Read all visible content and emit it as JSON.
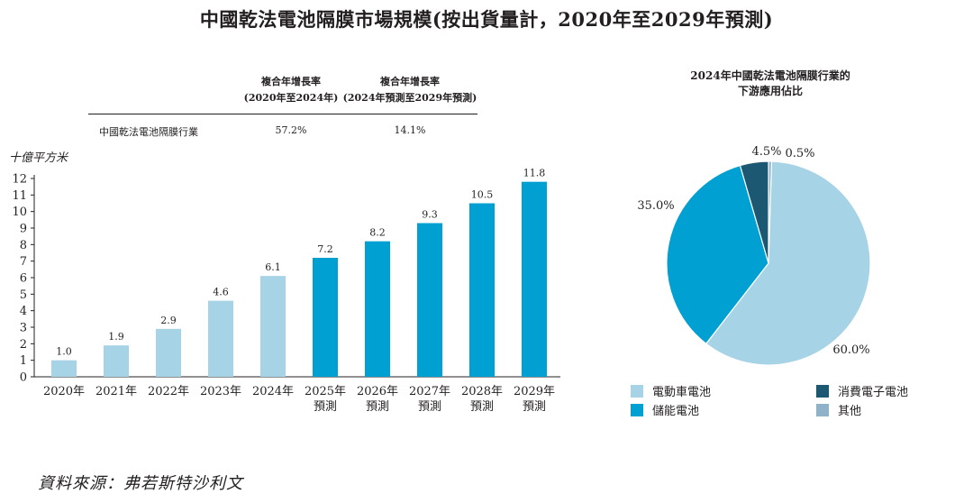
{
  "title": "中國乾法電池隔膜市場規模(按出貨量計，2020年至2029年預測)",
  "cagr_table": {
    "headers": [
      {
        "line1": "複合年增長率",
        "line2": "(2020年至2024年)"
      },
      {
        "line1": "複合年增長率",
        "line2": "(2024年預測至2029年預測)"
      }
    ],
    "row_label": "中國乾法電池隔膜行業",
    "values": [
      "57.2%",
      "14.1%"
    ]
  },
  "pie_title": {
    "line1": "2024年中國乾法電池隔膜行業的",
    "line2": "下游應用佔比"
  },
  "legend": [
    {
      "label": "電動車電池",
      "color": "#a6d3e6"
    },
    {
      "label": "消費電子電池",
      "color": "#1c5872"
    },
    {
      "label": "儲能電池",
      "color": "#00a0d2"
    },
    {
      "label": "其他",
      "color": "#8fb2c9"
    }
  ],
  "source": "資料來源：弗若斯特沙利文",
  "chart_data": [
    {
      "type": "bar",
      "title": "",
      "ylabel": "十億平方米",
      "xlabel": "",
      "ylim": [
        0,
        12
      ],
      "yticks": [
        0,
        1,
        2,
        3,
        4,
        5,
        6,
        7,
        8,
        9,
        10,
        11,
        12
      ],
      "categories": [
        [
          "2020年"
        ],
        [
          "2021年"
        ],
        [
          "2022年"
        ],
        [
          "2023年"
        ],
        [
          "2024年"
        ],
        [
          "2025年",
          "預測"
        ],
        [
          "2026年",
          "預測"
        ],
        [
          "2027年",
          "預測"
        ],
        [
          "2028年",
          "預測"
        ],
        [
          "2029年",
          "預測"
        ]
      ],
      "values": [
        1.0,
        1.9,
        2.9,
        4.6,
        6.1,
        7.2,
        8.2,
        9.3,
        10.5,
        11.8
      ],
      "value_labels": [
        "1.0",
        "1.9",
        "2.9",
        "4.6",
        "6.1",
        "7.2",
        "8.2",
        "9.3",
        "10.5",
        "11.8"
      ],
      "colors": [
        "#a6d3e6",
        "#a6d3e6",
        "#a6d3e6",
        "#a6d3e6",
        "#a6d3e6",
        "#00a0d2",
        "#00a0d2",
        "#00a0d2",
        "#00a0d2",
        "#00a0d2"
      ]
    },
    {
      "type": "pie",
      "title": "2024年中國乾法電池隔膜行業的下游應用佔比",
      "slices": [
        {
          "label": "電動車電池",
          "value": 60.0,
          "display": "60.0%",
          "color": "#a6d3e6"
        },
        {
          "label": "儲能電池",
          "value": 35.0,
          "display": "35.0%",
          "color": "#00a0d2"
        },
        {
          "label": "消費電子電池",
          "value": 4.5,
          "display": "4.5%",
          "color": "#1c5872"
        },
        {
          "label": "其他",
          "value": 0.5,
          "display": "0.5%",
          "color": "#8fb2c9"
        }
      ]
    }
  ]
}
